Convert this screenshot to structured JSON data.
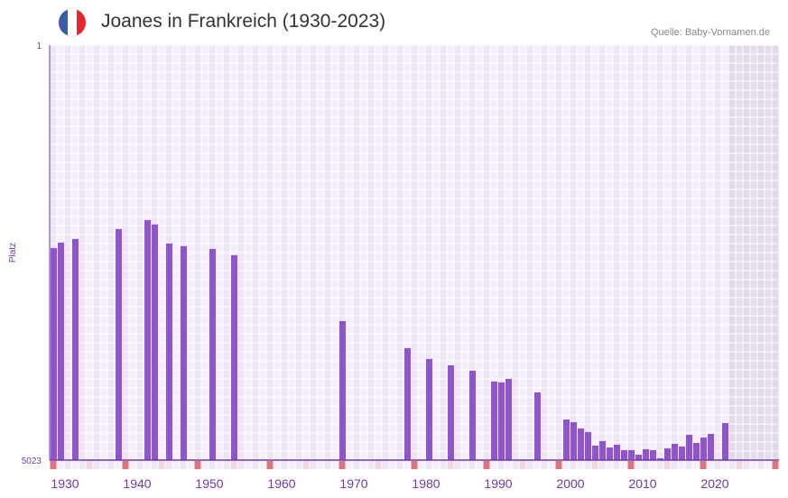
{
  "header": {
    "title": "Joanes in Frankreich (1930-2023)",
    "source": "Quelle: Baby-Vornamen.de",
    "flag_colors": [
      "#3b5aa8",
      "#ffffff",
      "#e8262e"
    ]
  },
  "chart_data": {
    "type": "bar",
    "title": "Joanes in Frankreich (1930-2023)",
    "ylabel": "Platz",
    "xlabel": "",
    "ylim": [
      5023,
      1
    ],
    "y_tick_labels": [
      "1",
      "5023"
    ],
    "x_range": [
      1930,
      2030
    ],
    "x_tick_labels": [
      "1930",
      "1940",
      "1950",
      "1960",
      "1970",
      "1980",
      "1990",
      "2000",
      "2010",
      "2020"
    ],
    "data_end_year": 2023,
    "bar_color": "#8e55c8",
    "x": [
      1930,
      1931,
      1933,
      1939,
      1943,
      1944,
      1946,
      1948,
      1952,
      1955,
      1970,
      1979,
      1982,
      1985,
      1988,
      1991,
      1992,
      1993,
      1997,
      2001,
      2002,
      2003,
      2004,
      2005,
      2006,
      2007,
      2008,
      2009,
      2010,
      2011,
      2012,
      2013,
      2014,
      2015,
      2016,
      2017,
      2018,
      2019,
      2020,
      2021,
      2023
    ],
    "values": [
      2457,
      2391,
      2347,
      2227,
      2118,
      2172,
      2402,
      2434,
      2467,
      2544,
      3341,
      3668,
      3799,
      3876,
      3941,
      4072,
      4083,
      4040,
      4204,
      4532,
      4564,
      4640,
      4684,
      4848,
      4793,
      4870,
      4837,
      4902,
      4902,
      4957,
      4891,
      4902,
      5001,
      4880,
      4826,
      4859,
      4717,
      4815,
      4750,
      4706,
      4575
    ]
  }
}
